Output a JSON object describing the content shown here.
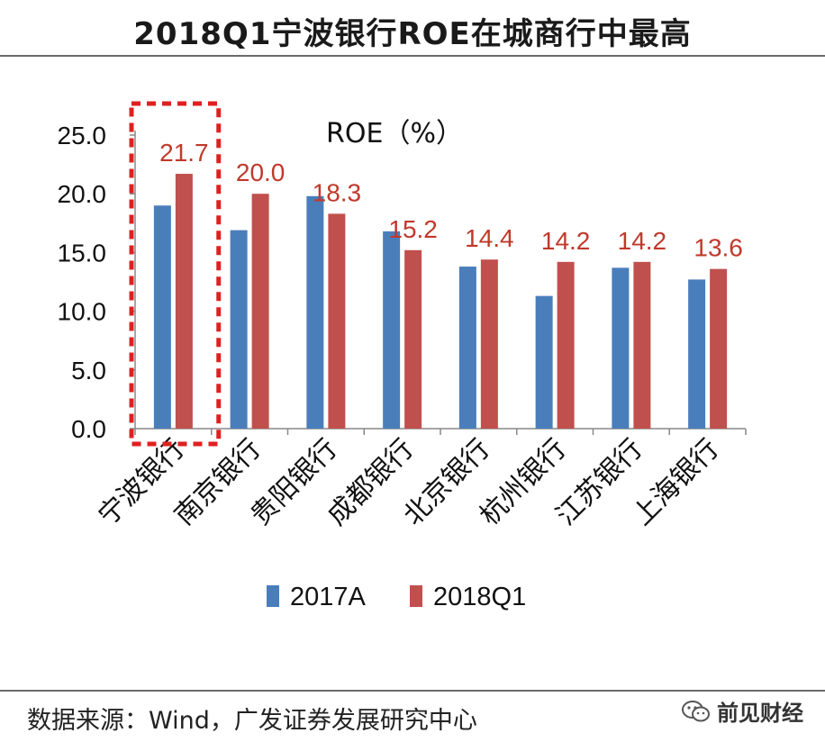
{
  "page": {
    "title": "2018Q1宁波银行ROE在城商行中最高",
    "source": "数据来源：Wind，广发证券发展研究中心",
    "watermark": "前见财经"
  },
  "chart_data": {
    "type": "bar",
    "title": "ROE（%）",
    "categories": [
      "宁波银行",
      "南京银行",
      "贵阳银行",
      "成都银行",
      "北京银行",
      "杭州银行",
      "江苏银行",
      "上海银行"
    ],
    "series": [
      {
        "name": "2017A",
        "color": "#4a7ebb",
        "values": [
          19.0,
          16.9,
          19.8,
          16.8,
          13.8,
          11.3,
          13.7,
          12.7
        ]
      },
      {
        "name": "2018Q1",
        "color": "#c0504d",
        "values": [
          21.7,
          20.0,
          18.3,
          15.2,
          14.4,
          14.2,
          14.2,
          13.6
        ]
      }
    ],
    "data_labels": [
      "21.7",
      "20.0",
      "18.3",
      "15.2",
      "14.4",
      "14.2",
      "14.2",
      "13.6"
    ],
    "y_ticks": [
      "0.0",
      "5.0",
      "10.0",
      "15.0",
      "20.0",
      "25.0"
    ],
    "ylim": [
      0,
      25
    ],
    "grid": false,
    "legend_placement": "bottom",
    "highlight": {
      "category": "宁波银行",
      "style": "red-dashed-box"
    },
    "label_color": "#c0392b"
  }
}
